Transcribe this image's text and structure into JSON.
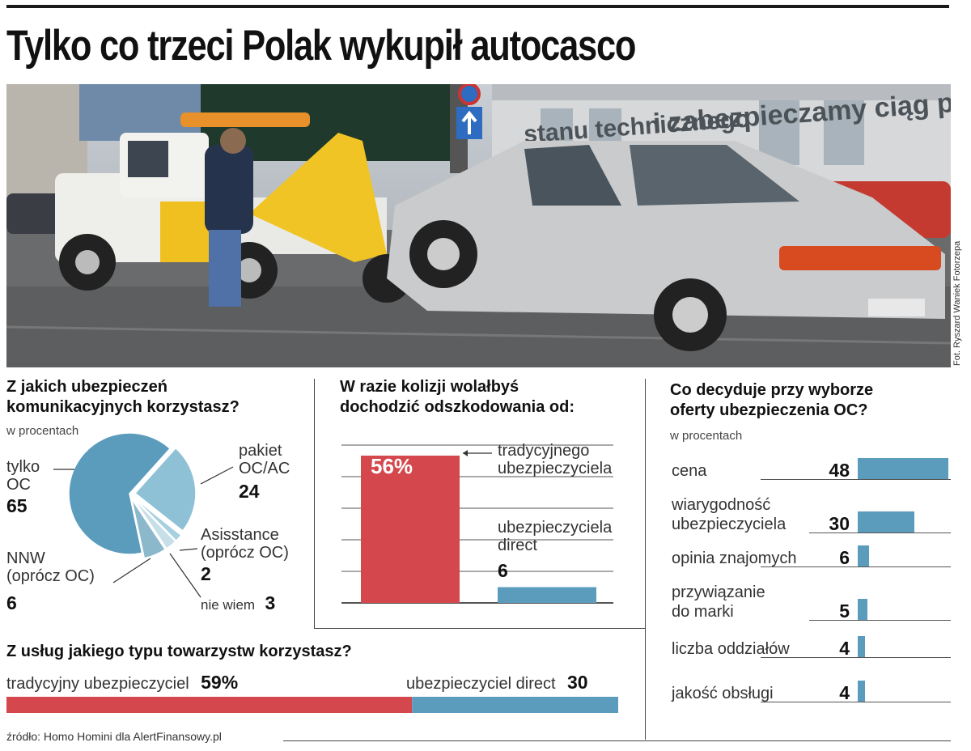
{
  "title": "Tylko co trzeci Polak wykupił autocasco",
  "photo": {
    "credit": "Fot. Ryszard Waniek Fotorzepa",
    "sign_text": "i zabezpieczamy ciąg pieszy",
    "sign_text2": "stanu technicznego"
  },
  "colors": {
    "blue": "#5b9cbc",
    "blue_light": "#8fc1d6",
    "red": "#d3474d",
    "dark_blue": "#3f86aa"
  },
  "pie_panel": {
    "question_line1": "Z jakich ubezpieczeń",
    "question_line2": "komunikacyjnych korzystasz?",
    "unit": "w procentach",
    "labels": {
      "oc": [
        "tylko",
        "OC"
      ],
      "pakiet": [
        "pakiet",
        "OC/AC"
      ],
      "asist": [
        "Asisstance",
        "(oprócz OC)"
      ],
      "nnw": [
        "NNW",
        "(oprócz OC)"
      ],
      "nie": "nie wiem"
    },
    "values": {
      "oc": "65",
      "pakiet": "24",
      "asist": "2",
      "nnw": "6",
      "nie": "3"
    }
  },
  "bar_panel": {
    "question_line1": "W razie kolizji wolałbyś",
    "question_line2": "dochodzić odszkodowania od:",
    "label_trad": [
      "tradycyjnego",
      "ubezpieczyciela"
    ],
    "label_direct": [
      "ubezpieczyciela",
      "direct"
    ],
    "value_trad": "56%",
    "value_direct": "6"
  },
  "split_panel": {
    "question": "Z usług jakiego typu towarzystw korzystasz?",
    "label_trad": "tradycyjny ubezpieczyciel",
    "value_trad": "59%",
    "label_direct": "ubezpieczyciel direct",
    "value_direct": "30"
  },
  "source": "źródło: Homo Homini dla AlertFinansowy.pl",
  "hbar_panel": {
    "question_line1": "Co decyduje przy wyborze",
    "question_line2": "oferty ubezpieczenia OC?",
    "unit": "w procentach"
  },
  "chart_data": [
    {
      "type": "pie",
      "title": "Z jakich ubezpieczeń komunikacyjnych korzystasz?",
      "subtitle": "w procentach",
      "categories": [
        "tylko OC",
        "pakiet OC/AC",
        "Asisstance (oprócz OC)",
        "nie wiem",
        "NNW (oprócz OC)"
      ],
      "values": [
        65,
        24,
        2,
        3,
        6
      ]
    },
    {
      "type": "bar",
      "title": "W razie kolizji wolałbyś dochodzić odszkodowania od:",
      "categories": [
        "tradycyjnego ubezpieczyciela",
        "ubezpieczyciela direct"
      ],
      "values": [
        56,
        6
      ],
      "ylim": [
        0,
        60
      ]
    },
    {
      "type": "bar",
      "title": "Z usług jakiego typu towarzystw korzystasz?",
      "categories": [
        "tradycyjny ubezpieczyciel",
        "ubezpieczyciel direct"
      ],
      "values": [
        59,
        30
      ]
    },
    {
      "type": "bar",
      "title": "Co decyduje przy wyborze oferty ubezpieczenia OC?",
      "subtitle": "w procentach",
      "categories": [
        "cena",
        "wiarygodność ubezpieczyciela",
        "opinia znajomych",
        "przywiązanie do marki",
        "liczba oddziałów",
        "jakość obsługi"
      ],
      "labels": [
        [
          "cena"
        ],
        [
          "wiarygodność",
          "ubezpieczyciela"
        ],
        [
          "opinia znajomych"
        ],
        [
          "przywiązanie",
          "do marki"
        ],
        [
          "liczba oddziałów"
        ],
        [
          "jakość obsługi"
        ]
      ],
      "values": [
        48,
        30,
        6,
        5,
        4,
        4
      ]
    }
  ]
}
